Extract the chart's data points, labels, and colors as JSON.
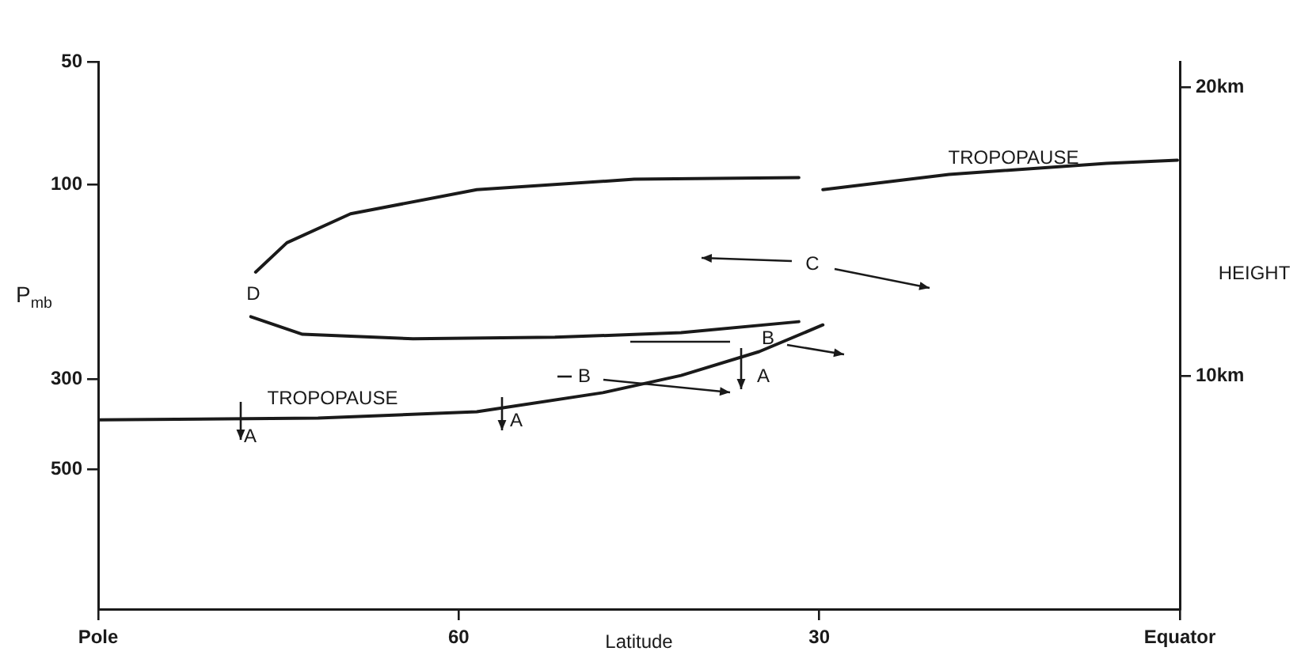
{
  "chart_data": {
    "type": "line",
    "xlabel": "Latitude",
    "ylabel": "P$_{mb}$",
    "y2label": "HEIGHT",
    "xlim": [
      90,
      0
    ],
    "xticks": [
      {
        "value": 90,
        "label": "Pole"
      },
      60,
      30,
      {
        "value": 0,
        "label": "Equator"
      }
    ],
    "log": "y",
    "ylim": [
      1100,
      50
    ],
    "yticks": [
      50,
      100,
      300,
      500
    ],
    "y2lim": [
      1.9,
      20.9
    ],
    "y2ticks": [
      {
        "value": 10,
        "label": "10km"
      },
      {
        "value": 20,
        "label": "20km"
      }
    ],
    "series": [
      {
        "color": "#1a1a1a",
        "x": [
          90,
          71.7,
          58.5,
          48,
          41.5,
          35,
          29.7
        ],
        "values": [
          378,
          374,
          361,
          324,
          294,
          257,
          221
        ]
      },
      {
        "color": "#1a1a1a",
        "x": [
          29.7,
          19.2,
          6.1,
          0.2
        ],
        "values": [
          103,
          94.5,
          88.8,
          87.2
        ]
      },
      {
        "color": "#1a1a1a",
        "x": [
          31.7,
          45.4,
          58.5,
          69.0,
          74.3,
          76.9
        ],
        "values": [
          96.2,
          97.1,
          103,
          118,
          139,
          164
        ]
      },
      {
        "color": "#1a1a1a",
        "x": [
          77.3,
          73.0,
          63.8,
          52.0,
          41.5,
          31.7
        ],
        "values": [
          211,
          233,
          239,
          237,
          231,
          217
        ]
      }
    ],
    "annotations": [
      "TROPOPAUSE",
      "TROPOPAUSE",
      "A",
      "A",
      "A",
      "B",
      "B",
      "C",
      "D"
    ],
    "grid": false,
    "legend": false,
    "marker": "none",
    "line_style": "solid"
  }
}
